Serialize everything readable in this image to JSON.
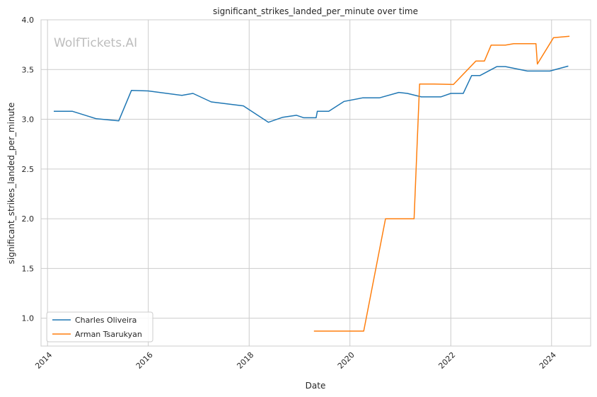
{
  "chart_data": {
    "type": "line",
    "title": "significant_strikes_landed_per_minute over time",
    "xlabel": "Date",
    "ylabel": "significant_strikes_landed_per_minute",
    "xlim": [
      "2013-11-15",
      "2024-10-10"
    ],
    "ylim": [
      0.72,
      4.0
    ],
    "x_ticks": [
      "2014",
      "2016",
      "2018",
      "2020",
      "2022",
      "2024"
    ],
    "y_ticks": [
      "1.0",
      "1.5",
      "2.0",
      "2.5",
      "3.0",
      "3.5",
      "4.0"
    ],
    "grid": true,
    "legend_position": "lower-left",
    "watermark": "WolfTickets.AI",
    "series": [
      {
        "name": "Charles Oliveira",
        "color": "#1f77b4",
        "points": [
          [
            "2014-02-15",
            3.08
          ],
          [
            "2014-07-01",
            3.08
          ],
          [
            "2014-12-20",
            3.005
          ],
          [
            "2015-06-01",
            2.985
          ],
          [
            "2015-09-01",
            3.29
          ],
          [
            "2016-01-01",
            3.285
          ],
          [
            "2016-09-01",
            3.24
          ],
          [
            "2016-11-20",
            3.26
          ],
          [
            "2017-04-01",
            3.175
          ],
          [
            "2017-11-20",
            3.135
          ],
          [
            "2018-05-20",
            2.97
          ],
          [
            "2018-09-01",
            3.02
          ],
          [
            "2018-12-10",
            3.04
          ],
          [
            "2019-02-01",
            3.015
          ],
          [
            "2019-05-01",
            3.015
          ],
          [
            "2019-05-10",
            3.08
          ],
          [
            "2019-08-01",
            3.08
          ],
          [
            "2019-11-20",
            3.18
          ],
          [
            "2020-04-01",
            3.215
          ],
          [
            "2020-08-01",
            3.215
          ],
          [
            "2020-12-20",
            3.27
          ],
          [
            "2021-02-20",
            3.26
          ],
          [
            "2021-06-01",
            3.225
          ],
          [
            "2021-10-20",
            3.225
          ],
          [
            "2022-01-01",
            3.26
          ],
          [
            "2022-04-01",
            3.26
          ],
          [
            "2022-06-01",
            3.44
          ],
          [
            "2022-08-01",
            3.44
          ],
          [
            "2022-12-01",
            3.53
          ],
          [
            "2023-02-01",
            3.53
          ],
          [
            "2023-07-10",
            3.485
          ],
          [
            "2023-12-20",
            3.485
          ],
          [
            "2024-05-01",
            3.535
          ]
        ]
      },
      {
        "name": "Arman Tsarukyan",
        "color": "#ff7f0e",
        "points": [
          [
            "2019-04-15",
            0.87
          ],
          [
            "2019-11-01",
            0.87
          ],
          [
            "2020-04-10",
            0.87
          ],
          [
            "2020-09-15",
            2.0
          ],
          [
            "2021-04-10",
            2.0
          ],
          [
            "2021-05-20",
            3.355
          ],
          [
            "2021-09-01",
            3.355
          ],
          [
            "2022-01-20",
            3.35
          ],
          [
            "2022-07-01",
            3.585
          ],
          [
            "2022-09-01",
            3.585
          ],
          [
            "2022-10-20",
            3.745
          ],
          [
            "2023-02-01",
            3.745
          ],
          [
            "2023-04-01",
            3.76
          ],
          [
            "2023-09-10",
            3.76
          ],
          [
            "2023-09-20",
            3.555
          ],
          [
            "2024-01-15",
            3.82
          ],
          [
            "2024-05-10",
            3.835
          ]
        ]
      }
    ]
  }
}
